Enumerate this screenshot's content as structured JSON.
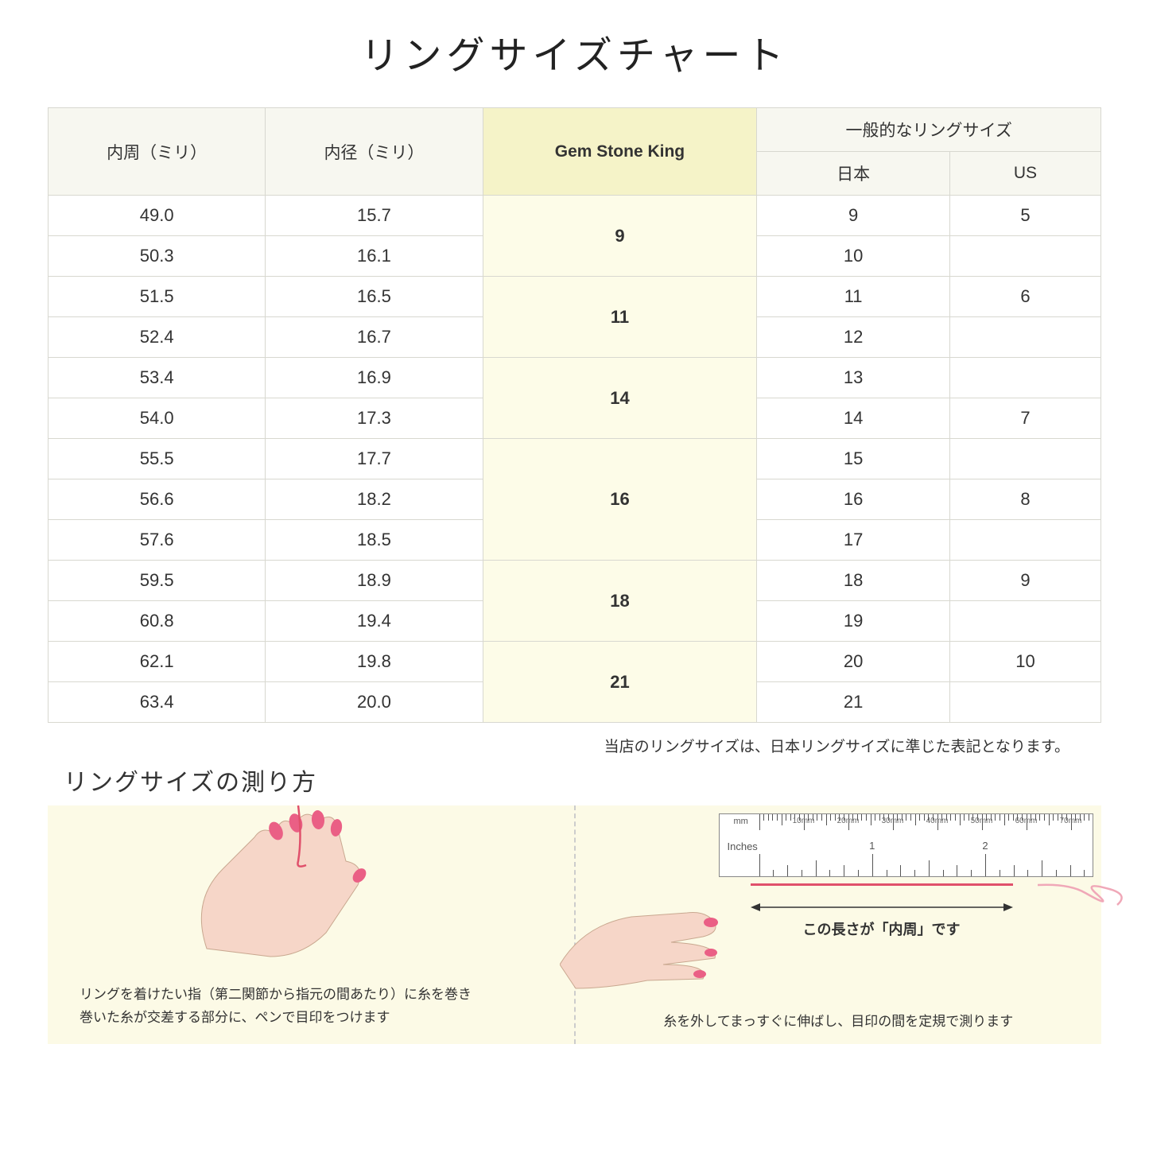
{
  "title": "リングサイズチャート",
  "table": {
    "headers": {
      "circumference": "内周（ミリ）",
      "diameter": "内径（ミリ）",
      "gsk": "Gem Stone King",
      "general": "一般的なリングサイズ",
      "jp": "日本",
      "us": "US"
    },
    "groups": [
      {
        "gsk": "9",
        "rows": [
          {
            "c": "49.0",
            "d": "15.7",
            "jp": "9",
            "us": "5"
          },
          {
            "c": "50.3",
            "d": "16.1",
            "jp": "10",
            "us": ""
          }
        ]
      },
      {
        "gsk": "11",
        "rows": [
          {
            "c": "51.5",
            "d": "16.5",
            "jp": "11",
            "us": "6"
          },
          {
            "c": "52.4",
            "d": "16.7",
            "jp": "12",
            "us": ""
          }
        ]
      },
      {
        "gsk": "14",
        "rows": [
          {
            "c": "53.4",
            "d": "16.9",
            "jp": "13",
            "us": ""
          },
          {
            "c": "54.0",
            "d": "17.3",
            "jp": "14",
            "us": "7"
          }
        ]
      },
      {
        "gsk": "16",
        "rows": [
          {
            "c": "55.5",
            "d": "17.7",
            "jp": "15",
            "us": ""
          },
          {
            "c": "56.6",
            "d": "18.2",
            "jp": "16",
            "us": "8"
          },
          {
            "c": "57.6",
            "d": "18.5",
            "jp": "17",
            "us": ""
          }
        ]
      },
      {
        "gsk": "18",
        "rows": [
          {
            "c": "59.5",
            "d": "18.9",
            "jp": "18",
            "us": "9"
          },
          {
            "c": "60.8",
            "d": "19.4",
            "jp": "19",
            "us": ""
          }
        ]
      },
      {
        "gsk": "21",
        "rows": [
          {
            "c": "62.1",
            "d": "19.8",
            "jp": "20",
            "us": "10"
          },
          {
            "c": "63.4",
            "d": "20.0",
            "jp": "21",
            "us": ""
          }
        ]
      }
    ]
  },
  "note": "当店のリングサイズは、日本リングサイズに準じた表記となります。",
  "howto": {
    "title": "リングサイズの測り方",
    "left_caption_1": "リングを着けたい指（第二関節から指元の間あたり）に糸を巻き",
    "left_caption_2": "巻いた糸が交差する部分に、ペンで目印をつけます",
    "right_arrow_label": "この長さが「内周」です",
    "right_caption": "糸を外してまっすぐに伸ばし、目印の間を定規で測ります",
    "ruler_mm": "mm",
    "ruler_inches": "Inches"
  },
  "colors": {
    "header_bg": "#f7f7f0",
    "highlight_bg": "#f5f3c8",
    "highlight_cell_bg": "#fdfce8",
    "howto_bg": "#fcfae6",
    "thread": "#e0506b",
    "skin": "#f6d6c8",
    "nail": "#ea5f85"
  }
}
